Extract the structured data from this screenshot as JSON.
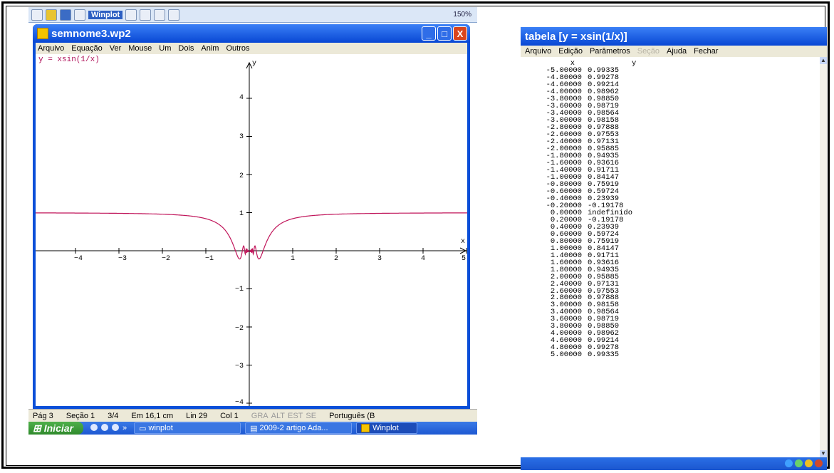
{
  "winplot_screen": {
    "toolbar": {
      "app_label": "Winplot",
      "zoom": "150%"
    },
    "window": {
      "title": "semnome3.wp2",
      "minimize": "_",
      "maximize": "□",
      "close": "X"
    },
    "menu": [
      "Arquivo",
      "Equação",
      "Ver",
      "Mouse",
      "Um",
      "Dois",
      "Anim",
      "Outros"
    ],
    "equation_label": "y = xsin(1/x)",
    "axis_x_label": "x",
    "axis_y_label": "y",
    "curve_color": "#c0155a",
    "x_ticks": [
      "−4",
      "−3",
      "−2",
      "−1",
      "1",
      "2",
      "3",
      "4",
      "5"
    ],
    "y_ticks": [
      "4",
      "3",
      "2",
      "1",
      "−1",
      "−2",
      "−3",
      "−4"
    ],
    "status": {
      "page": "Pág 3",
      "section": "Seção 1",
      "pages": "3/4",
      "position": "Em 16,1 cm",
      "line": "Lin 29",
      "col": "Col 1",
      "flags": [
        "GRA",
        "ALT",
        "EST",
        "SE"
      ],
      "language": "Português (B"
    },
    "taskbar": {
      "start": "Iniciar",
      "chevron": "»",
      "items": [
        "winplot",
        "2009-2 artigo Ada...",
        "Winplot"
      ]
    }
  },
  "table_screen": {
    "title": "tabela [y = xsin(1/x)]",
    "menu": [
      {
        "label": "Arquivo",
        "disabled": false
      },
      {
        "label": "Edição",
        "disabled": false
      },
      {
        "label": "Parâmetros",
        "disabled": false
      },
      {
        "label": "Seção",
        "disabled": true
      },
      {
        "label": "Ajuda",
        "disabled": false
      },
      {
        "label": "Fechar",
        "disabled": false
      }
    ],
    "columns": [
      "x",
      "y"
    ],
    "rows": [
      [
        "-5.00000",
        "0.99335"
      ],
      [
        "-4.80000",
        "0.99278"
      ],
      [
        "-4.60000",
        "0.99214"
      ],
      [
        "-4.00000",
        "0.98962"
      ],
      [
        "-3.80000",
        "0.98850"
      ],
      [
        "-3.60000",
        "0.98719"
      ],
      [
        "-3.40000",
        "0.98564"
      ],
      [
        "-3.00000",
        "0.98158"
      ],
      [
        "-2.80000",
        "0.97888"
      ],
      [
        "-2.60000",
        "0.97553"
      ],
      [
        "-2.40000",
        "0.97131"
      ],
      [
        "-2.00000",
        "0.95885"
      ],
      [
        "-1.80000",
        "0.94935"
      ],
      [
        "-1.60000",
        "0.93616"
      ],
      [
        "-1.40000",
        "0.91711"
      ],
      [
        "-1.00000",
        "0.84147"
      ],
      [
        "-0.80000",
        "0.75919"
      ],
      [
        "-0.60000",
        "0.59724"
      ],
      [
        "-0.40000",
        "0.23939"
      ],
      [
        "-0.20000",
        "-0.19178"
      ],
      [
        "0.00000",
        "indefinido"
      ],
      [
        "0.20000",
        "-0.19178"
      ],
      [
        "0.40000",
        "0.23939"
      ],
      [
        "0.60000",
        "0.59724"
      ],
      [
        "0.80000",
        "0.75919"
      ],
      [
        "1.00000",
        "0.84147"
      ],
      [
        "1.40000",
        "0.91711"
      ],
      [
        "1.60000",
        "0.93616"
      ],
      [
        "1.80000",
        "0.94935"
      ],
      [
        "2.00000",
        "0.95885"
      ],
      [
        "2.40000",
        "0.97131"
      ],
      [
        "2.60000",
        "0.97553"
      ],
      [
        "2.80000",
        "0.97888"
      ],
      [
        "3.00000",
        "0.98158"
      ],
      [
        "3.40000",
        "0.98564"
      ],
      [
        "3.60000",
        "0.98719"
      ],
      [
        "3.80000",
        "0.98850"
      ],
      [
        "4.00000",
        "0.98962"
      ],
      [
        "4.60000",
        "0.99214"
      ],
      [
        "4.80000",
        "0.99278"
      ],
      [
        "5.00000",
        "0.99335"
      ]
    ]
  }
}
